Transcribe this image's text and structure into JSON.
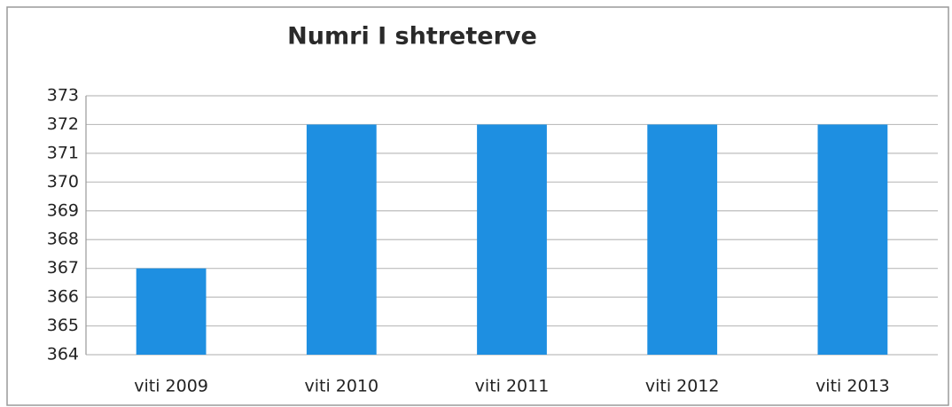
{
  "chart_data": {
    "type": "bar",
    "title": "Numri I shtreterve",
    "categories": [
      "viti 2009",
      "viti 2010",
      "viti 2011",
      "viti 2012",
      "viti 2013"
    ],
    "values": [
      367,
      372,
      372,
      372,
      372
    ],
    "color": "#1e8fe1",
    "ylim": [
      364,
      373
    ],
    "yticks": [
      364,
      365,
      366,
      367,
      368,
      369,
      370,
      371,
      372,
      373
    ],
    "grid": true
  }
}
